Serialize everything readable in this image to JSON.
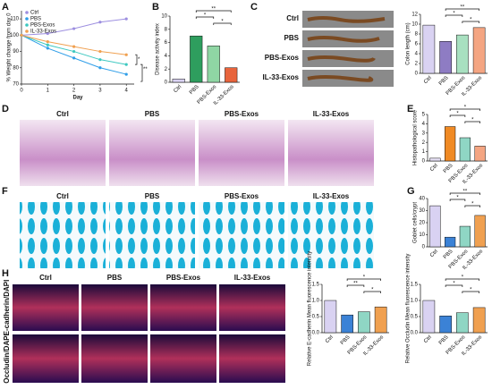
{
  "panel_labels": [
    "A",
    "B",
    "C",
    "D",
    "E",
    "F",
    "G",
    "H"
  ],
  "image_labels": {
    "C": [
      "Ctrl",
      "PBS",
      "PBS-Exos",
      "IL-33-Exos"
    ],
    "D": [
      "Ctrl",
      "PBS",
      "PBS-Exos",
      "IL-33-Exos"
    ],
    "F": [
      "Ctrl",
      "PBS",
      "PBS-Exos",
      "IL-33-Exos"
    ],
    "H": [
      "Ctrl",
      "PBS",
      "PBS-Exos",
      "IL-33-Exos"
    ],
    "H_rows": [
      "E-cadherin/DAPI",
      "Occludin/DAPI"
    ]
  },
  "chart_data": [
    {
      "type": "line",
      "y_label": "% Weight change from day 0",
      "x_label": "Day",
      "x": [
        0,
        1,
        2,
        3,
        4
      ],
      "xlim": [
        0,
        4.3
      ],
      "xticks": [
        0,
        1,
        2,
        3,
        4
      ],
      "ylim": [
        70,
        115
      ],
      "yticks": [
        70,
        80,
        90,
        100,
        110
      ],
      "series": [
        {
          "name": "Ctrl",
          "color": "#9d8fe0",
          "values": [
            100,
            101,
            104,
            108,
            110
          ]
        },
        {
          "name": "PBS",
          "color": "#2f9ee8",
          "values": [
            100,
            92,
            86,
            80,
            76
          ]
        },
        {
          "name": "PBS-Exos",
          "color": "#3cc8c0",
          "values": [
            100,
            94,
            90,
            85,
            82
          ]
        },
        {
          "name": "IL-33-Exos",
          "color": "#f0a050",
          "values": [
            100,
            96,
            93,
            90,
            88
          ]
        }
      ],
      "annotations": [
        "*",
        "**"
      ]
    },
    {
      "type": "bar",
      "y_label": "Disease activity index",
      "categories": [
        "Ctrl",
        "PBS",
        "PBS-Exos",
        "IL-33-Exos"
      ],
      "values": [
        0.5,
        7.0,
        5.5,
        2.2
      ],
      "colors": [
        "#d9d2f2",
        "#2e9e5e",
        "#8fd6a4",
        "#e8643c"
      ],
      "ylim": [
        0,
        10
      ],
      "yticks": [
        0,
        2,
        4,
        6,
        8,
        10
      ],
      "annotations": [
        "**",
        "*",
        "*"
      ]
    },
    {
      "type": "bar",
      "y_label": "Colon length (cm)",
      "categories": [
        "Ctrl",
        "PBS",
        "PBS-Exos",
        "IL-33-Exos"
      ],
      "values": [
        9.8,
        6.5,
        7.8,
        9.3
      ],
      "colors": [
        "#d9d2f2",
        "#8e7cc3",
        "#a8e0c0",
        "#f4a582"
      ],
      "ylim": [
        0,
        12
      ],
      "yticks": [
        0,
        2,
        4,
        6,
        8,
        10,
        12
      ],
      "annotations": [
        "**",
        "*",
        "*"
      ]
    },
    {
      "type": "bar",
      "y_label": "Histopathological score",
      "categories": [
        "Ctrl",
        "PBS",
        "PBS-Exos",
        "IL-33-Exos"
      ],
      "values": [
        0.3,
        3.7,
        2.5,
        1.6
      ],
      "colors": [
        "#e6e0f5",
        "#f08a24",
        "#8fd6c4",
        "#f4a582"
      ],
      "ylim": [
        0,
        5
      ],
      "yticks": [
        0,
        1,
        2,
        3,
        4,
        5
      ],
      "annotations": [
        "*",
        "*",
        "*"
      ]
    },
    {
      "type": "bar",
      "y_label": "Goblet cells/crypt",
      "categories": [
        "Ctrl",
        "PBS",
        "PBS-Exos",
        "IL-33-Exos"
      ],
      "values": [
        34,
        8,
        17,
        26
      ],
      "colors": [
        "#d9d2f2",
        "#3b82d6",
        "#8fd6c4",
        "#f0a050"
      ],
      "ylim": [
        0,
        40
      ],
      "yticks": [
        0,
        10,
        20,
        30,
        40
      ],
      "annotations": [
        "**",
        "*",
        "*"
      ]
    },
    {
      "type": "bar",
      "y_label": "Relative E-cadherin Mean fluorescence intensity",
      "categories": [
        "Ctrl",
        "PBS",
        "PBS-Exos",
        "IL-33-Exos"
      ],
      "values": [
        1.0,
        0.55,
        0.65,
        0.8
      ],
      "colors": [
        "#d9d2f2",
        "#3b82d6",
        "#8fd6c4",
        "#f0a050"
      ],
      "ylim": [
        0,
        1.5
      ],
      "yticks": [
        {
          "value": 0,
          "label": "0.0"
        },
        0.5,
        {
          "value": 1,
          "label": "1.0"
        },
        1.5
      ],
      "annotations": [
        "*",
        "**",
        "*"
      ]
    },
    {
      "type": "bar",
      "y_label": "Relative Occludin Mean fluorescence intensity",
      "categories": [
        "Ctrl",
        "PBS",
        "PBS-Exos",
        "IL-33-Exos"
      ],
      "values": [
        1.0,
        0.52,
        0.62,
        0.78
      ],
      "colors": [
        "#d9d2f2",
        "#3b82d6",
        "#8fd6c4",
        "#f0a050"
      ],
      "ylim": [
        0,
        1.5
      ],
      "yticks": [
        {
          "value": 0,
          "label": "0.0"
        },
        0.5,
        {
          "value": 1,
          "label": "1.0"
        },
        1.5
      ],
      "annotations": [
        "*",
        "*",
        "*"
      ]
    }
  ]
}
